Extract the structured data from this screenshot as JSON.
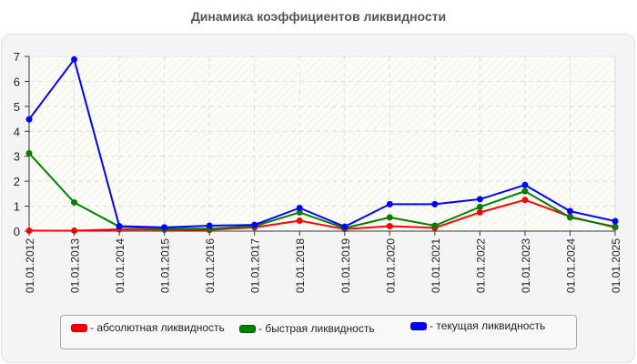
{
  "title": "Динамика коэффициентов ликвидности",
  "chart_data": {
    "type": "line",
    "title": "Динамика коэффициентов ликвидности",
    "xlabel": "",
    "ylabel": "",
    "ylim": [
      0,
      7
    ],
    "yticks": [
      0,
      1,
      2,
      3,
      4,
      5,
      6,
      7
    ],
    "grid": true,
    "legend_position": "bottom",
    "categories": [
      "01.01.2012",
      "01.01.2013",
      "01.01.2014",
      "01.01.2015",
      "01.01.2016",
      "01.01.2017",
      "01.01.2018",
      "01.01.2019",
      "01.01.2020",
      "01.01.2021",
      "01.01.2022",
      "01.01.2023",
      "01.01.2024",
      "01.01.2025"
    ],
    "series": [
      {
        "name": "- абсолютная ликвидность",
        "color": "#ff0000",
        "values": [
          0.02,
          0.02,
          0.07,
          0.06,
          0.05,
          0.15,
          0.42,
          0.08,
          0.2,
          0.13,
          0.75,
          1.25,
          0.58,
          0.15
        ]
      },
      {
        "name": "- быстрая ликвидность",
        "color": "#008000",
        "values": [
          3.12,
          1.15,
          0.18,
          0.1,
          0.1,
          0.2,
          0.75,
          0.12,
          0.55,
          0.22,
          0.97,
          1.6,
          0.55,
          0.18
        ]
      },
      {
        "name": "- текущая ликвидность",
        "color": "#0000ff",
        "values": [
          4.48,
          6.88,
          0.2,
          0.15,
          0.22,
          0.25,
          0.93,
          0.18,
          1.08,
          1.08,
          1.28,
          1.85,
          0.8,
          0.4
        ]
      }
    ]
  },
  "legend": {
    "items": [
      {
        "label": "- абсолютная ликвидность",
        "color": "#ff0000"
      },
      {
        "label": "- быстрая ликвидность",
        "color": "#008000"
      },
      {
        "label": "- текущая ликвидность",
        "color": "#0000ff"
      }
    ]
  }
}
